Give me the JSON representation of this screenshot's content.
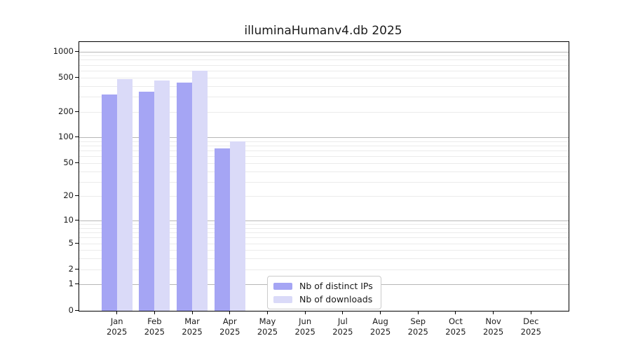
{
  "title": "illuminaHumanv4.db 2025",
  "chart_data": {
    "type": "bar",
    "title": "illuminaHumanv4.db 2025",
    "scale": "log10(1+y)",
    "categories": [
      "Jan",
      "Feb",
      "Mar",
      "Apr",
      "May",
      "Jun",
      "Jul",
      "Aug",
      "Sep",
      "Oct",
      "Nov",
      "Dec"
    ],
    "year": "2025",
    "series": [
      {
        "name": "Nb of distinct IPs",
        "color": "#a5a5f4",
        "values": [
          320,
          345,
          440,
          75,
          null,
          null,
          null,
          null,
          null,
          null,
          null,
          null
        ]
      },
      {
        "name": "Nb of downloads",
        "color": "#dadaf8",
        "values": [
          485,
          465,
          600,
          90,
          null,
          null,
          null,
          null,
          null,
          null,
          null,
          null
        ]
      }
    ],
    "yticks": [
      0,
      1,
      2,
      5,
      10,
      20,
      50,
      100,
      200,
      500,
      1000
    ],
    "ylim": [
      0,
      1300
    ],
    "grid": true,
    "legend_position": "inside-bottom-center"
  },
  "colors": {
    "grid_minor": "#ebebeb",
    "grid_major": "#b7b7b7",
    "axis": "#000000",
    "text": "#1a1a1a"
  }
}
